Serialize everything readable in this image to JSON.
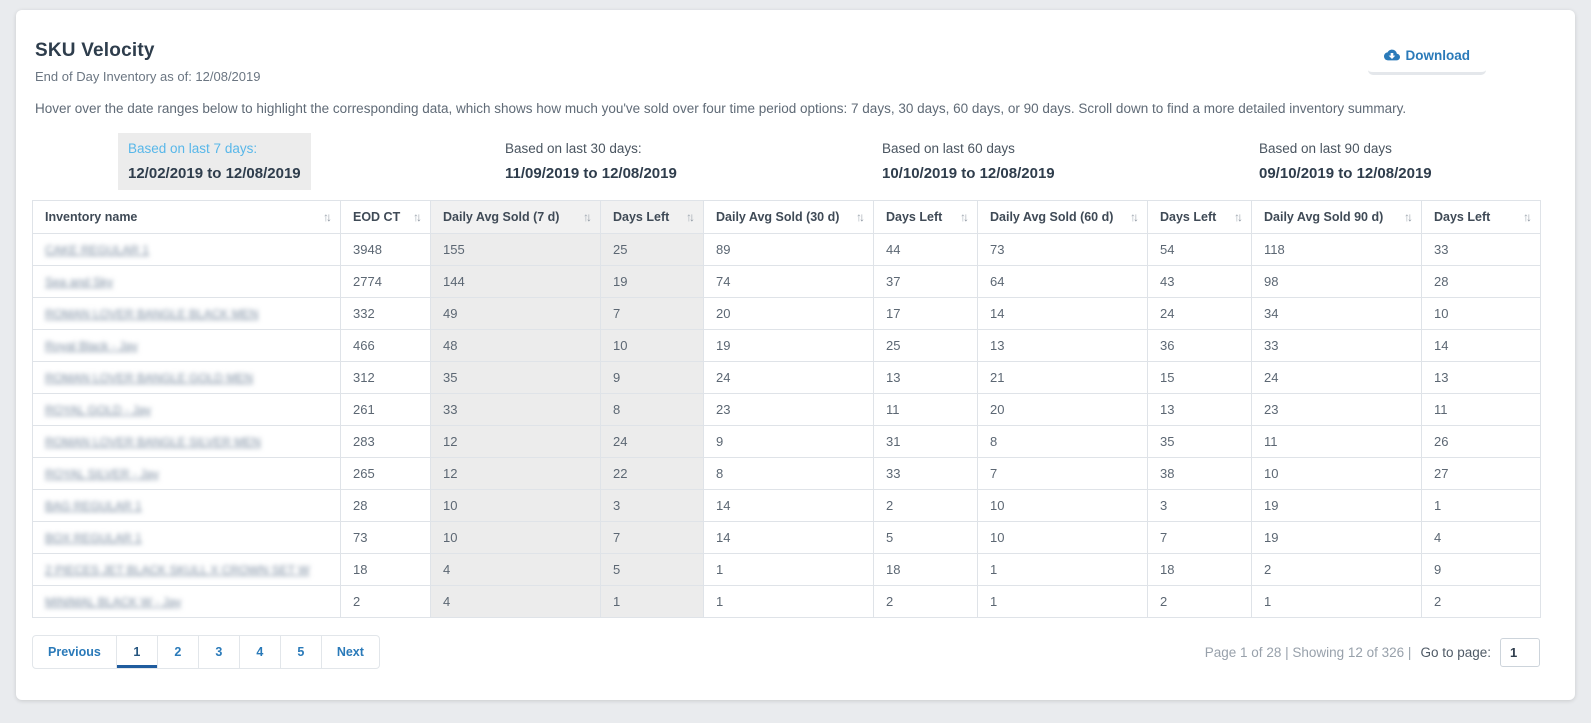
{
  "header": {
    "title": "SKU Velocity",
    "subtitle": "End of Day Inventory as of: 12/08/2019",
    "description": "Hover over the date ranges below to highlight the corresponding data, which shows how much you've sold over four time period options: 7 days, 30 days, 60 days, or 90 days. Scroll down to find a more detailed inventory summary.",
    "download_label": "Download"
  },
  "icons": {
    "download": "cloud-download",
    "sort": "up-down-arrows"
  },
  "colors": {
    "accent_blue": "#2a7ab9",
    "label_blue": "#58b7e9",
    "highlight_gray": "#ececec",
    "active_page_underline": "#1f5c9e"
  },
  "date_ranges": [
    {
      "label": "Based on last 7 days:",
      "range": "12/02/2019 to 12/08/2019",
      "highlighted": true
    },
    {
      "label": "Based on last 30 days:",
      "range": "11/09/2019 to 12/08/2019",
      "highlighted": false
    },
    {
      "label": "Based on last 60 days",
      "range": "10/10/2019 to 12/08/2019",
      "highlighted": false
    },
    {
      "label": "Based on last 90 days",
      "range": "09/10/2019 to 12/08/2019",
      "highlighted": false
    }
  ],
  "table": {
    "columns": [
      "Inventory name",
      "EOD CT",
      "Daily Avg Sold (7 d)",
      "Days Left",
      "Daily Avg Sold (30 d)",
      "Days Left",
      "Daily Avg Sold (60 d)",
      "Days Left",
      "Daily Avg Sold 90 d)",
      "Days Left"
    ],
    "highlighted_columns": [
      2,
      3
    ],
    "sort_icon": {
      "up": "↑",
      "down": "↓"
    },
    "rows": [
      {
        "name": "CAKE REGULAR 1",
        "values": [
          3948,
          155,
          25,
          89,
          44,
          73,
          54,
          118,
          33
        ]
      },
      {
        "name": "Sea and Sky",
        "values": [
          2774,
          144,
          19,
          74,
          37,
          64,
          43,
          98,
          28
        ]
      },
      {
        "name": "ROMAN LOVER BANGLE BLACK MEN",
        "values": [
          332,
          49,
          7,
          20,
          17,
          14,
          24,
          34,
          10
        ]
      },
      {
        "name": "Royal Black - Jay",
        "values": [
          466,
          48,
          10,
          19,
          25,
          13,
          36,
          33,
          14
        ]
      },
      {
        "name": "ROMAN LOVER BANGLE GOLD MEN",
        "values": [
          312,
          35,
          9,
          24,
          13,
          21,
          15,
          24,
          13
        ]
      },
      {
        "name": "ROYAL GOLD - Jay",
        "values": [
          261,
          33,
          8,
          23,
          11,
          20,
          13,
          23,
          11
        ]
      },
      {
        "name": "ROMAN LOVER BANGLE SILVER MEN",
        "values": [
          283,
          12,
          24,
          9,
          31,
          8,
          35,
          11,
          26
        ]
      },
      {
        "name": "ROYAL SILVER - Jay",
        "values": [
          265,
          12,
          22,
          8,
          33,
          7,
          38,
          10,
          27
        ]
      },
      {
        "name": "BAG REGULAR 1",
        "values": [
          28,
          10,
          3,
          14,
          2,
          10,
          3,
          19,
          1
        ]
      },
      {
        "name": "BOX REGULAR 1",
        "values": [
          73,
          10,
          7,
          14,
          5,
          10,
          7,
          19,
          4
        ]
      },
      {
        "name": "2 PIECES JET BLACK SKULL X CROWN SET W",
        "values": [
          18,
          4,
          5,
          1,
          18,
          1,
          18,
          2,
          9
        ]
      },
      {
        "name": "MINIMAL BLACK W - Jay",
        "values": [
          2,
          4,
          1,
          1,
          2,
          1,
          2,
          1,
          2
        ]
      }
    ]
  },
  "pagination": {
    "previous_label": "Previous",
    "pages": [
      "1",
      "2",
      "3",
      "4",
      "5"
    ],
    "next_label": "Next",
    "active_page": "1"
  },
  "footer": {
    "page_info": "Page 1 of 28 | Showing 12 of 326 |",
    "goto_label": "Go to page:",
    "goto_value": "1"
  }
}
